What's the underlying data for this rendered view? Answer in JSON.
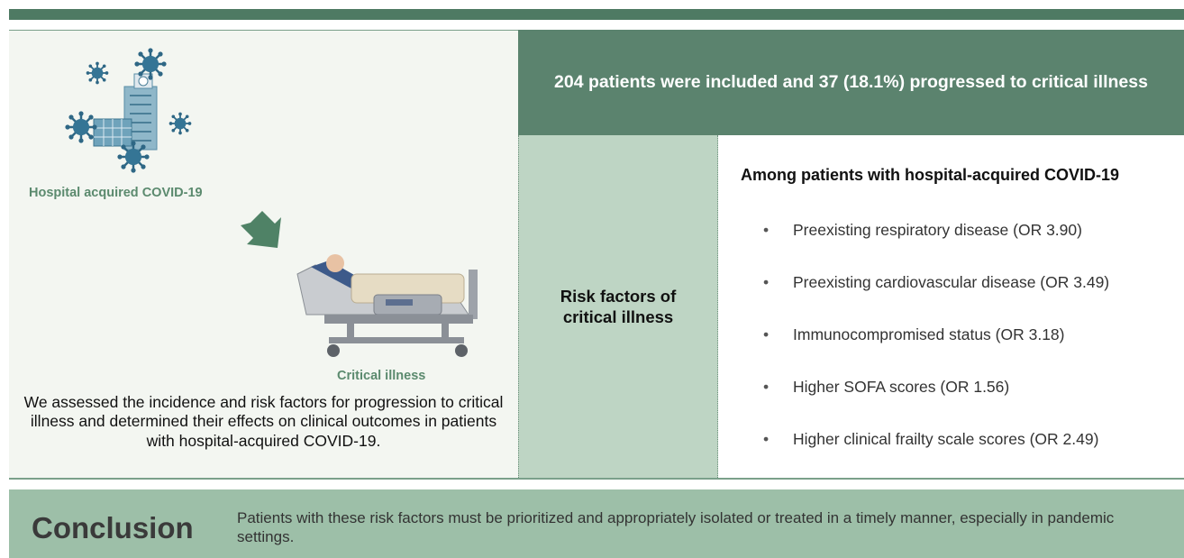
{
  "left_panel": {
    "label_top": "Hospital acquired COVID-19",
    "label_bottom": "Critical illness",
    "description": "We assessed the incidence and risk factors for progression to critical illness and determined their effects on clinical outcomes in patients with hospital-acquired COVID-19."
  },
  "summary": "204 patients were included and 37 (18.1%) progressed to critical illness",
  "risk_factors": {
    "title": "Risk factors of critical illness",
    "heading": "Among patients with hospital-acquired COVID-19",
    "items": [
      "Preexisting respiratory disease (OR 3.90)",
      "Preexisting cardiovascular disease (OR 3.49)",
      "Immunocompromised status (OR 3.18)",
      "Higher SOFA scores (OR 1.56)",
      "Higher clinical frailty scale scores (OR 2.49)"
    ]
  },
  "conclusion": {
    "title": "Conclusion",
    "text": "Patients with these risk factors must be prioritized and appropriately isolated or treated in a timely manner, especially in pandemic settings."
  }
}
